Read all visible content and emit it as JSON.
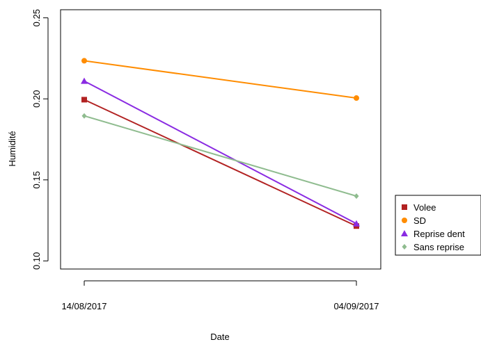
{
  "chart_data": {
    "type": "line",
    "title": "",
    "xlabel": "Date",
    "ylabel": "Humidité",
    "categories": [
      "14/08/2017",
      "04/09/2017"
    ],
    "ylim": [
      0.095,
      0.255
    ],
    "yticks": [
      "0.10",
      "0.15",
      "0.20",
      "0.25"
    ],
    "grid": false,
    "legend_position": "right",
    "series": [
      {
        "name": "Volee",
        "values": [
          0.1995,
          0.1215
        ],
        "color": "#b22222",
        "marker": "square"
      },
      {
        "name": "SD",
        "values": [
          0.2235,
          0.2005
        ],
        "color": "#ff8c00",
        "marker": "circle"
      },
      {
        "name": "Reprise dent",
        "values": [
          0.211,
          0.123
        ],
        "color": "#8a2be2",
        "marker": "triangle"
      },
      {
        "name": "Sans reprise",
        "values": [
          0.1895,
          0.14
        ],
        "color": "#8fbc8f",
        "marker": "diamond"
      }
    ]
  }
}
